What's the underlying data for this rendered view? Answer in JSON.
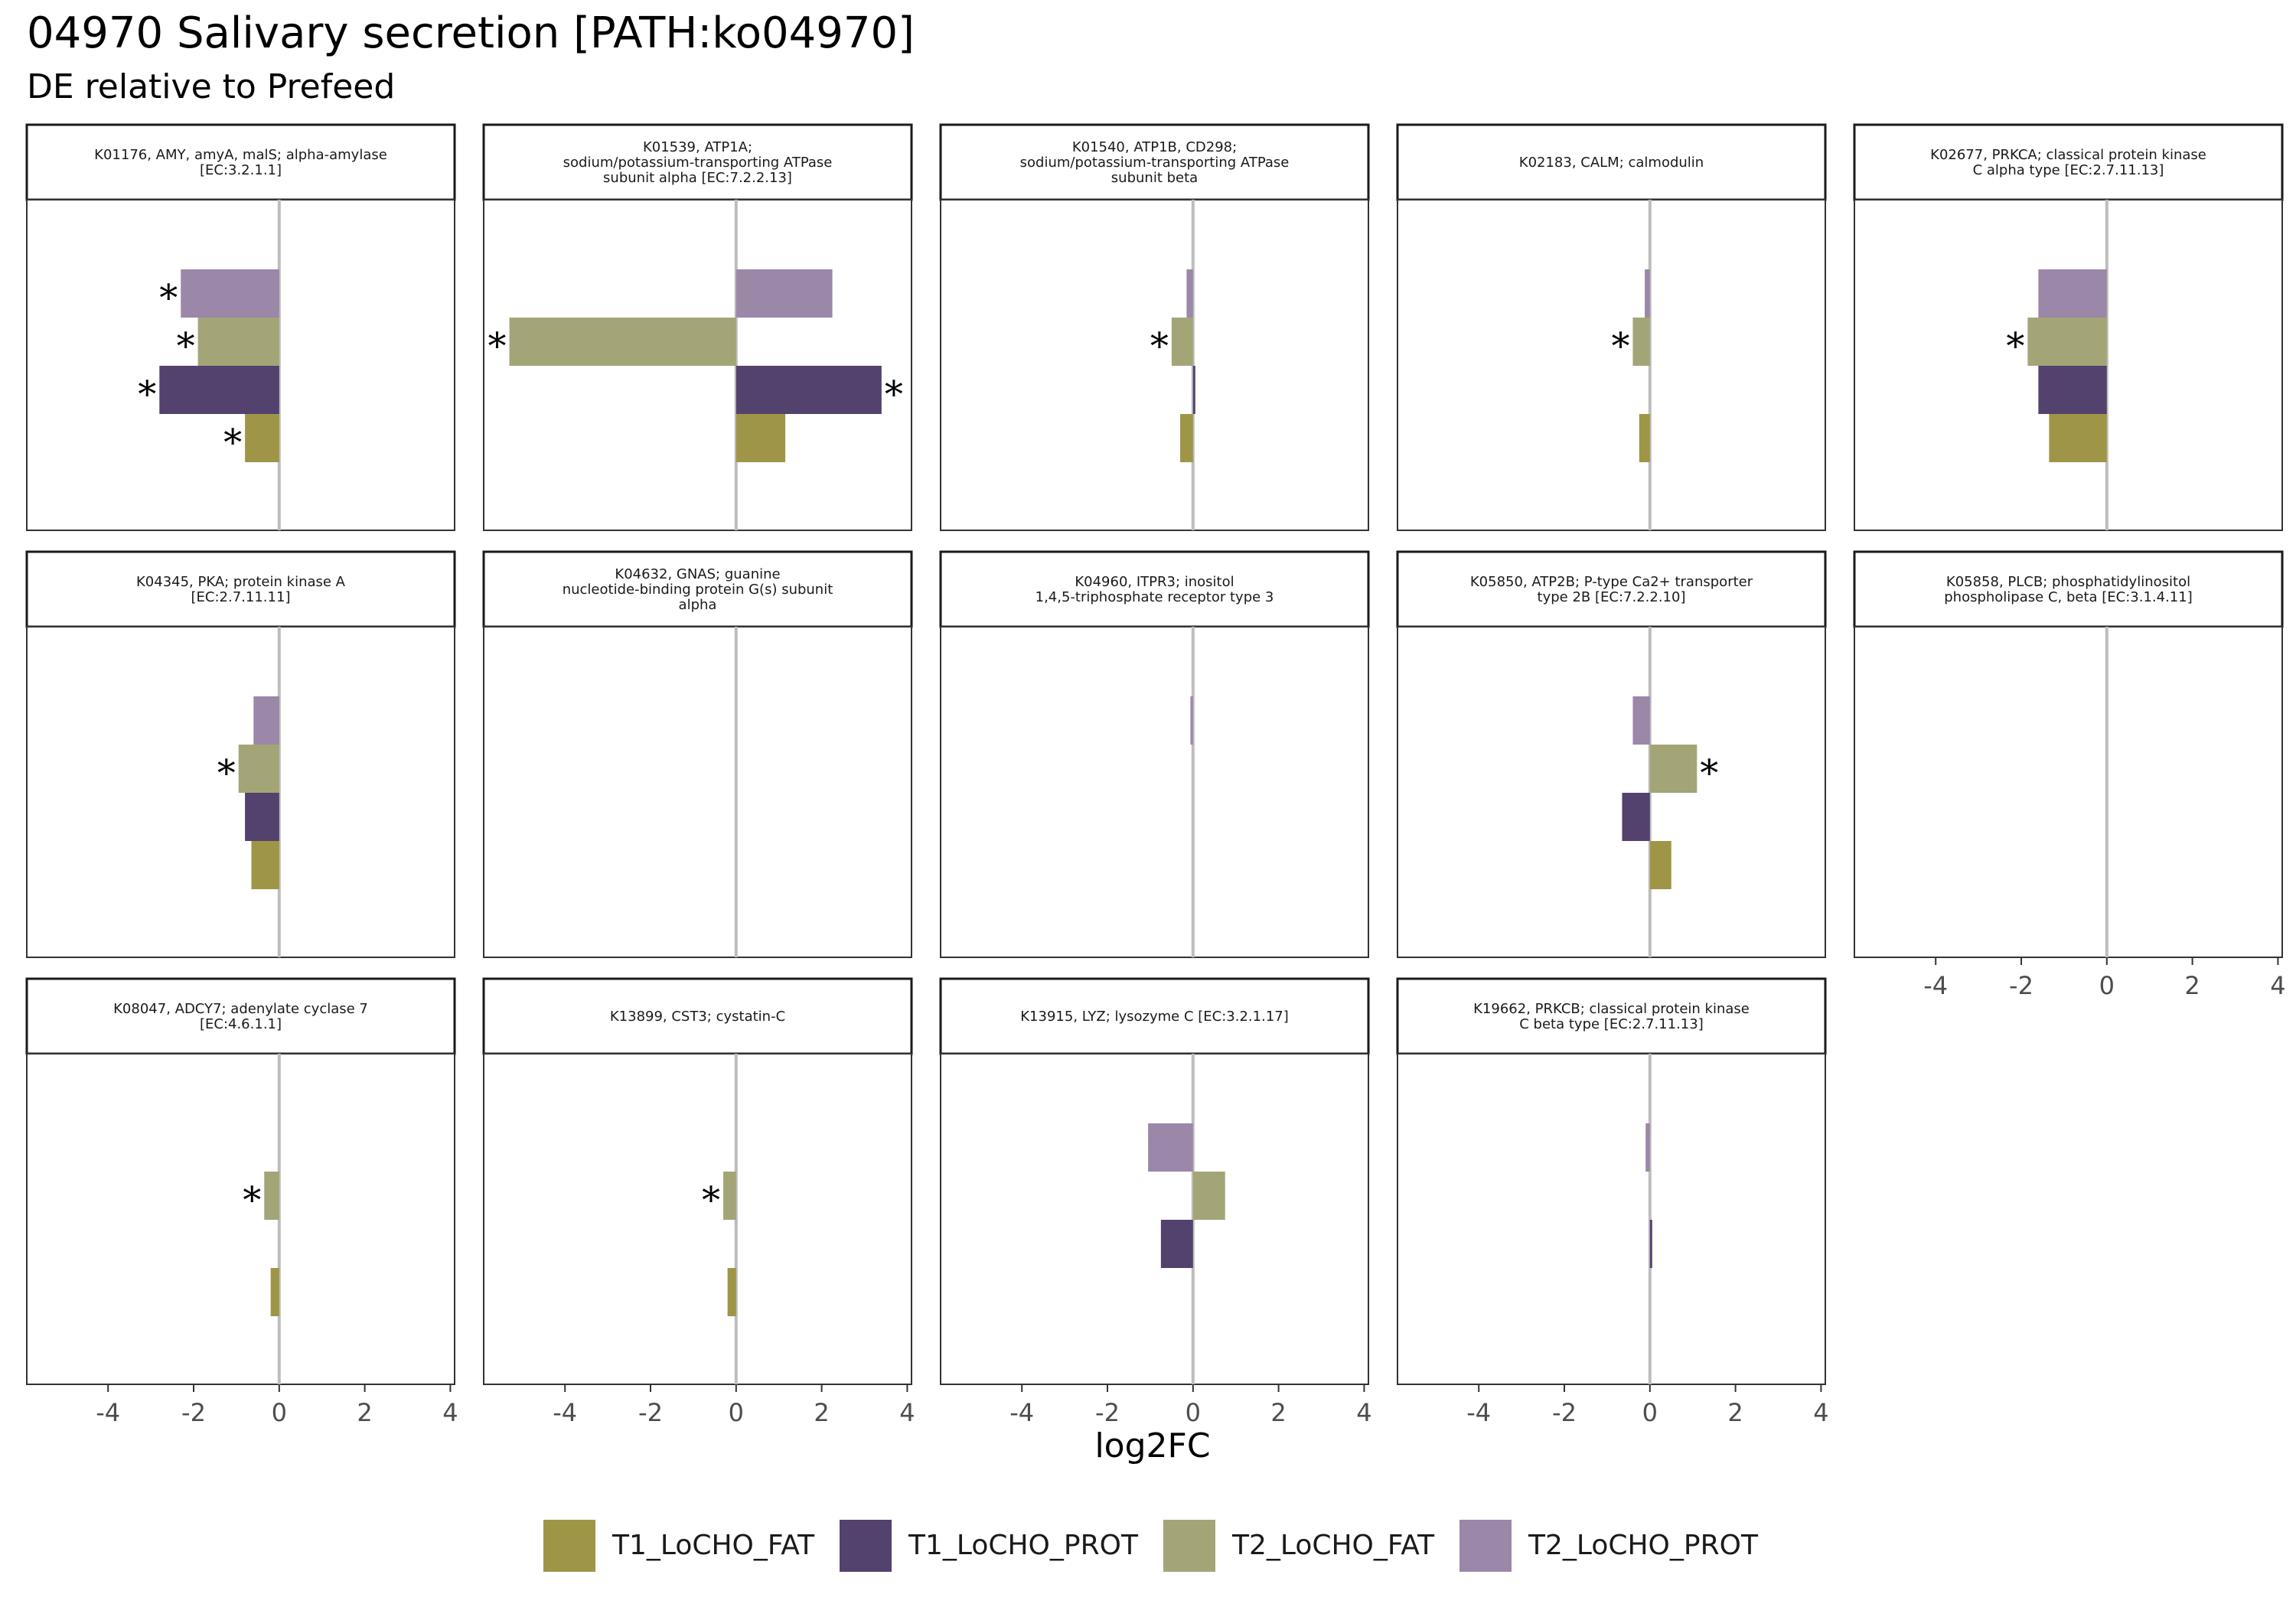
{
  "title": "04970 Salivary secretion [PATH:ko04970]",
  "subtitle": "DE relative to Prefeed",
  "colors": {
    "T1_LoCHO_FAT": "#9e9646",
    "T1_LoCHO_PROT": "#53416e",
    "T2_LoCHO_FAT": "#a3a577",
    "T2_LoCHO_PROT": "#9b87a7",
    "zero_line": "#bdbdbd",
    "panel_border": "#333333"
  },
  "legend": {
    "items": [
      {
        "label": "T1_LoCHO_FAT",
        "color": "#9e9646"
      },
      {
        "label": "T1_LoCHO_PROT",
        "color": "#53416e"
      },
      {
        "label": "T2_LoCHO_FAT",
        "color": "#a3a577"
      },
      {
        "label": "T2_LoCHO_PROT",
        "color": "#9b87a7"
      }
    ]
  },
  "chart_data": {
    "type": "bar",
    "orientation": "horizontal",
    "xlabel": "log2FC",
    "xlim": [
      -5.9,
      4.1
    ],
    "xticks": [
      -4,
      -2,
      0,
      2,
      4
    ],
    "xtick_labels": [
      "-4",
      "-2",
      "0",
      "2",
      "4"
    ],
    "series_order": [
      "T2_LoCHO_PROT",
      "T2_LoCHO_FAT",
      "T1_LoCHO_PROT",
      "T1_LoCHO_FAT"
    ],
    "significance_marker": "*",
    "panels": [
      {
        "label": [
          "K01176, AMY, amyA, malS; alpha-amylase",
          "[EC:3.2.1.1]"
        ],
        "values": {
          "T2_LoCHO_PROT": -2.3,
          "T2_LoCHO_FAT": -1.9,
          "T1_LoCHO_PROT": -2.8,
          "T1_LoCHO_FAT": -0.8
        },
        "significant": [
          "T2_LoCHO_PROT",
          "T2_LoCHO_FAT",
          "T1_LoCHO_PROT",
          "T1_LoCHO_FAT"
        ]
      },
      {
        "label": [
          "K01539, ATP1A;",
          "sodium/potassium-transporting ATPase",
          "subunit alpha [EC:7.2.2.13]"
        ],
        "values": {
          "T2_LoCHO_PROT": 2.25,
          "T2_LoCHO_FAT": -5.3,
          "T1_LoCHO_PROT": 3.4,
          "T1_LoCHO_FAT": 1.15
        },
        "significant": [
          "T2_LoCHO_FAT",
          "T1_LoCHO_PROT"
        ]
      },
      {
        "label": [
          "K01540, ATP1B, CD298;",
          "sodium/potassium-transporting ATPase",
          "subunit beta"
        ],
        "values": {
          "T2_LoCHO_PROT": -0.15,
          "T2_LoCHO_FAT": -0.5,
          "T1_LoCHO_PROT": 0.05,
          "T1_LoCHO_FAT": -0.3
        },
        "significant": [
          "T2_LoCHO_FAT"
        ]
      },
      {
        "label": [
          "K02183, CALM; calmodulin"
        ],
        "values": {
          "T2_LoCHO_PROT": -0.12,
          "T2_LoCHO_FAT": -0.4,
          "T1_LoCHO_PROT": null,
          "T1_LoCHO_FAT": -0.25
        },
        "significant": [
          "T2_LoCHO_FAT"
        ]
      },
      {
        "label": [
          "K02677, PRKCA; classical protein kinase",
          "C alpha type [EC:2.7.11.13]"
        ],
        "values": {
          "T2_LoCHO_PROT": -1.6,
          "T2_LoCHO_FAT": -1.85,
          "T1_LoCHO_PROT": -1.6,
          "T1_LoCHO_FAT": -1.35
        },
        "significant": [
          "T2_LoCHO_FAT"
        ]
      },
      {
        "label": [
          "K04345, PKA; protein kinase A",
          "[EC:2.7.11.11]"
        ],
        "values": {
          "T2_LoCHO_PROT": -0.6,
          "T2_LoCHO_FAT": -0.95,
          "T1_LoCHO_PROT": -0.8,
          "T1_LoCHO_FAT": -0.65
        },
        "significant": [
          "T2_LoCHO_FAT"
        ]
      },
      {
        "label": [
          "K04632, GNAS; guanine",
          "nucleotide-binding protein G(s) subunit",
          "alpha"
        ],
        "values": {
          "T2_LoCHO_PROT": null,
          "T2_LoCHO_FAT": null,
          "T1_LoCHO_PROT": null,
          "T1_LoCHO_FAT": null
        },
        "significant": []
      },
      {
        "label": [
          "K04960, ITPR3; inositol",
          "1,4,5-triphosphate receptor type 3"
        ],
        "values": {
          "T2_LoCHO_PROT": -0.06,
          "T2_LoCHO_FAT": null,
          "T1_LoCHO_PROT": null,
          "T1_LoCHO_FAT": null
        },
        "significant": []
      },
      {
        "label": [
          "K05850, ATP2B; P-type Ca2+ transporter",
          "type 2B [EC:7.2.2.10]"
        ],
        "values": {
          "T2_LoCHO_PROT": -0.4,
          "T2_LoCHO_FAT": 1.1,
          "T1_LoCHO_PROT": -0.65,
          "T1_LoCHO_FAT": 0.5
        },
        "significant": [
          "T2_LoCHO_FAT"
        ]
      },
      {
        "label": [
          "K05858, PLCB; phosphatidylinositol",
          "phospholipase C, beta [EC:3.1.4.11]"
        ],
        "values": {
          "T2_LoCHO_PROT": null,
          "T2_LoCHO_FAT": null,
          "T1_LoCHO_PROT": null,
          "T1_LoCHO_FAT": null
        },
        "significant": []
      },
      {
        "label": [
          "K08047, ADCY7; adenylate cyclase 7",
          "[EC:4.6.1.1]"
        ],
        "values": {
          "T2_LoCHO_PROT": null,
          "T2_LoCHO_FAT": -0.35,
          "T1_LoCHO_PROT": null,
          "T1_LoCHO_FAT": -0.2
        },
        "significant": [
          "T2_LoCHO_FAT"
        ]
      },
      {
        "label": [
          "K13899, CST3; cystatin-C"
        ],
        "values": {
          "T2_LoCHO_PROT": null,
          "T2_LoCHO_FAT": -0.3,
          "T1_LoCHO_PROT": null,
          "T1_LoCHO_FAT": -0.2
        },
        "significant": [
          "T2_LoCHO_FAT"
        ]
      },
      {
        "label": [
          "K13915, LYZ; lysozyme C [EC:3.2.1.17]"
        ],
        "values": {
          "T2_LoCHO_PROT": -1.05,
          "T2_LoCHO_FAT": 0.75,
          "T1_LoCHO_PROT": -0.75,
          "T1_LoCHO_FAT": null
        },
        "significant": []
      },
      {
        "label": [
          "K19662, PRKCB; classical protein kinase",
          "C beta type [EC:2.7.11.13]"
        ],
        "values": {
          "T2_LoCHO_PROT": -0.1,
          "T2_LoCHO_FAT": null,
          "T1_LoCHO_PROT": 0.05,
          "T1_LoCHO_FAT": null
        },
        "significant": []
      }
    ]
  }
}
